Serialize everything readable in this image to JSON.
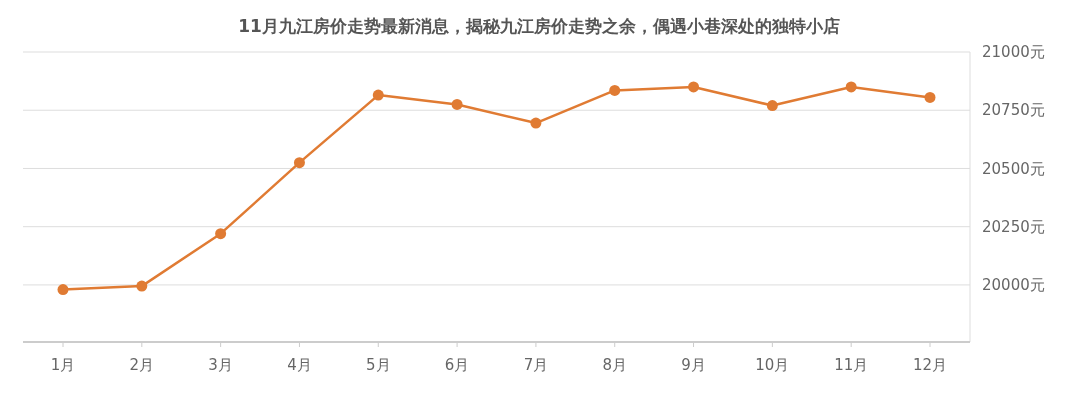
{
  "chart_data": {
    "type": "line",
    "title": "11月九江房价走势最新消息，揭秘九江房价走势之余，偶遇小巷深处的独特小店",
    "categories": [
      "1月",
      "2月",
      "3月",
      "4月",
      "5月",
      "6月",
      "7月",
      "8月",
      "9月",
      "10月",
      "11月",
      "12月"
    ],
    "series": [
      {
        "color": "#e07b33",
        "values": [
          19980,
          19995,
          20220,
          20525,
          20815,
          20775,
          20695,
          20835,
          20850,
          20770,
          20850,
          20805
        ]
      }
    ],
    "ylim": [
      19755,
      21000
    ],
    "yticks": [
      {
        "value": 20000,
        "label": "20000元"
      },
      {
        "value": 20250,
        "label": "20250元"
      },
      {
        "value": 20500,
        "label": "20500元"
      },
      {
        "value": 20750,
        "label": "20750元"
      },
      {
        "value": 21000,
        "label": "21000元"
      }
    ],
    "grid": "y",
    "marker": "circle",
    "line_style": "solid"
  }
}
